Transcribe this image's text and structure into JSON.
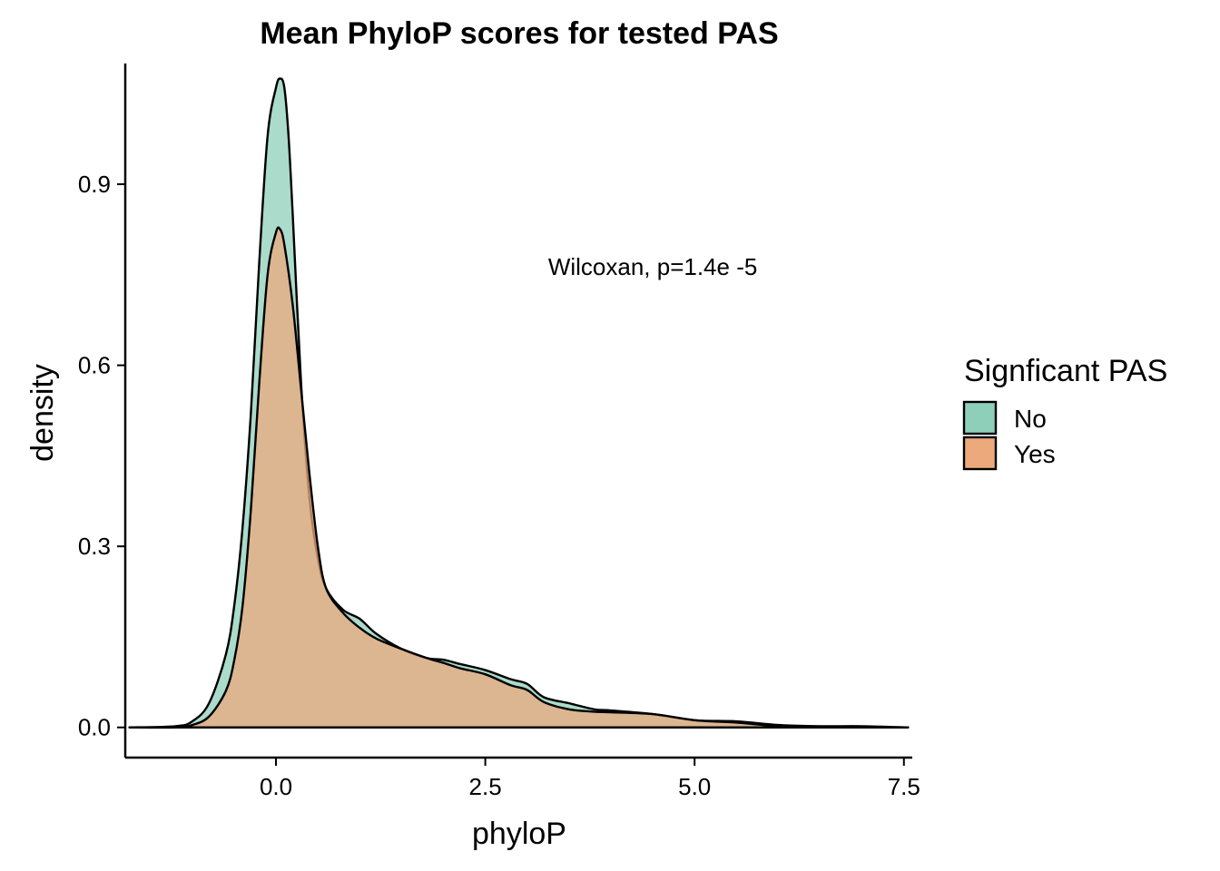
{
  "chart_data": {
    "type": "area",
    "title": "Mean PhyloP scores for tested PAS",
    "xlabel": "phyloP",
    "ylabel": "density",
    "xlim": [
      -1.8,
      7.6
    ],
    "ylim": [
      -0.05,
      1.1
    ],
    "x_ticks": [
      0.0,
      2.5,
      5.0,
      7.5
    ],
    "x_tick_labels": [
      "0.0",
      "2.5",
      "5.0",
      "7.5"
    ],
    "y_ticks": [
      0.0,
      0.3,
      0.6,
      0.9
    ],
    "y_tick_labels": [
      "0.0",
      "0.3",
      "0.6",
      "0.9"
    ],
    "grid": false,
    "annotation": {
      "text": "Wilcoxan, p=1.4e -5",
      "x": 4.5,
      "y": 0.75
    },
    "legend": {
      "title": "Signficant PAS",
      "position": "right"
    },
    "series": [
      {
        "name": "No",
        "color": "#1b9e77",
        "fill": "#8ecfba",
        "stroke": "#000000",
        "x": [
          -1.75,
          -1.2,
          -1.0,
          -0.8,
          -0.6,
          -0.5,
          -0.4,
          -0.3,
          -0.2,
          -0.1,
          0.0,
          0.05,
          0.1,
          0.15,
          0.2,
          0.3,
          0.4,
          0.5,
          0.6,
          0.8,
          1.0,
          1.2,
          1.5,
          1.8,
          2.0,
          2.2,
          2.5,
          2.8,
          3.0,
          3.2,
          3.5,
          3.8,
          4.0,
          4.5,
          5.0,
          5.5,
          6.0,
          6.5,
          7.0,
          7.55
        ],
        "y": [
          0.0,
          0.002,
          0.01,
          0.04,
          0.12,
          0.2,
          0.33,
          0.52,
          0.77,
          0.98,
          1.06,
          1.075,
          1.06,
          0.98,
          0.85,
          0.57,
          0.38,
          0.28,
          0.23,
          0.195,
          0.18,
          0.155,
          0.13,
          0.115,
          0.112,
          0.105,
          0.095,
          0.08,
          0.072,
          0.05,
          0.04,
          0.03,
          0.028,
          0.022,
          0.012,
          0.01,
          0.004,
          0.002,
          0.002,
          0.0
        ]
      },
      {
        "name": "Yes",
        "color": "#d95f02",
        "fill": "#ecaa7c",
        "stroke": "#000000",
        "x": [
          -1.75,
          -1.2,
          -1.0,
          -0.8,
          -0.6,
          -0.5,
          -0.4,
          -0.3,
          -0.2,
          -0.1,
          0.0,
          0.05,
          0.1,
          0.2,
          0.3,
          0.4,
          0.5,
          0.6,
          0.8,
          1.0,
          1.2,
          1.5,
          1.8,
          2.0,
          2.2,
          2.5,
          2.8,
          3.0,
          3.2,
          3.5,
          3.8,
          4.0,
          4.5,
          5.0,
          5.5,
          6.0,
          6.5,
          7.0,
          7.55
        ],
        "y": [
          0.0,
          0.0,
          0.004,
          0.018,
          0.06,
          0.11,
          0.2,
          0.36,
          0.57,
          0.75,
          0.82,
          0.825,
          0.8,
          0.7,
          0.56,
          0.42,
          0.3,
          0.23,
          0.19,
          0.165,
          0.147,
          0.13,
          0.115,
          0.107,
          0.098,
          0.088,
          0.07,
          0.062,
          0.042,
          0.03,
          0.026,
          0.025,
          0.022,
          0.012,
          0.008,
          0.002,
          0.001,
          0.0,
          0.0
        ]
      }
    ]
  }
}
